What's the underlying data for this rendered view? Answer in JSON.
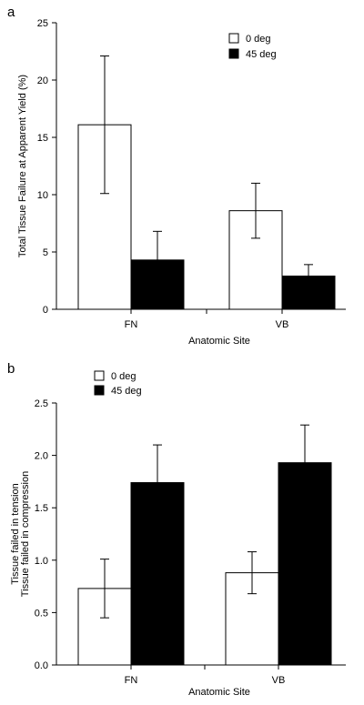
{
  "chart_data": [
    {
      "panel": "a",
      "type": "bar",
      "categories": [
        "FN",
        "VB"
      ],
      "series": [
        {
          "name": "0 deg",
          "values": [
            16.1,
            8.6
          ],
          "errors": [
            6.0,
            2.4
          ],
          "color": "#ffffff"
        },
        {
          "name": "45 deg",
          "values": [
            4.3,
            2.9
          ],
          "errors": [
            2.5,
            1.0
          ],
          "color": "#000000"
        }
      ],
      "xlabel": "Anatomic Site",
      "ylabel": "Total Tissue Failure at Apparent Yield (%)",
      "ylabel2": "",
      "ylim": [
        0,
        25
      ],
      "yticks": [
        "0",
        "5",
        "10",
        "15",
        "20",
        "25"
      ],
      "grid": false,
      "legend_position": "top-right"
    },
    {
      "panel": "b",
      "type": "bar",
      "categories": [
        "FN",
        "VB"
      ],
      "series": [
        {
          "name": "0 deg",
          "values": [
            0.73,
            0.88
          ],
          "errors": [
            0.28,
            0.2
          ],
          "color": "#ffffff"
        },
        {
          "name": "45 deg",
          "values": [
            1.74,
            1.93
          ],
          "errors": [
            0.36,
            0.36
          ],
          "color": "#000000"
        }
      ],
      "xlabel": "Anatomic Site",
      "ylabel": "Tissue failed in tension",
      "ylabel2": "Tissue failed in compression",
      "ylim": [
        0,
        2.5
      ],
      "yticks": [
        "0.0",
        "0.5",
        "1.0",
        "1.5",
        "2.0",
        "2.5"
      ],
      "grid": false,
      "legend_position": "top-left"
    }
  ]
}
